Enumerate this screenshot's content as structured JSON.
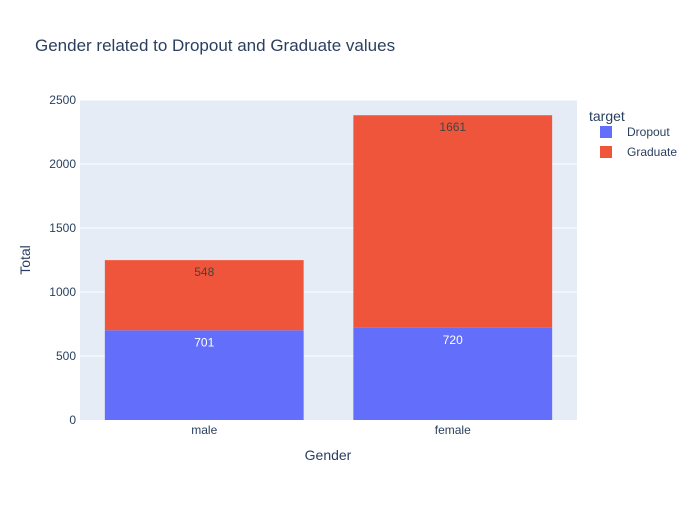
{
  "chart_data": {
    "type": "bar",
    "stacked": true,
    "title": "Gender related to Dropout and Graduate values",
    "xlabel": "Gender",
    "ylabel": "Total",
    "categories": [
      "male",
      "female"
    ],
    "series": [
      {
        "name": "Dropout",
        "values": [
          701,
          720
        ],
        "color": "#636efa",
        "label_color": "#ffffff"
      },
      {
        "name": "Graduate",
        "values": [
          548,
          1661
        ],
        "color": "#ef553b",
        "label_color": "#444444"
      }
    ],
    "ylim": [
      0,
      2500
    ],
    "yticks": [
      0,
      500,
      1000,
      1500,
      2000,
      2500
    ],
    "grid": true,
    "legend_title": "target",
    "legend_position": "top-right",
    "plot_background": "#e5ecf6",
    "gridline_color": "#ffffff"
  }
}
